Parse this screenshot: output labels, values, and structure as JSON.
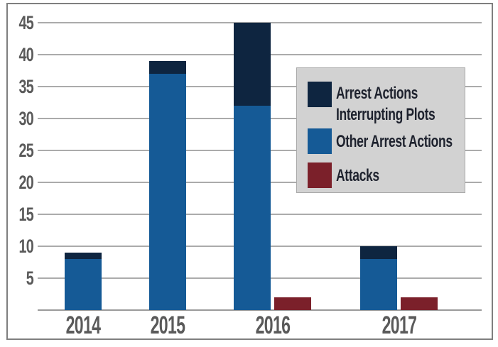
{
  "chart_data": {
    "type": "bar",
    "subtype": "stacked-column-with-side-column",
    "title": "",
    "xlabel": "",
    "ylabel": "",
    "categories": [
      "2014",
      "2015",
      "2016",
      "2017"
    ],
    "series": [
      {
        "name": "Arrest Actions Interrupting Plots",
        "color": "#0e2540",
        "stack": "arrest-actions",
        "values": [
          1,
          2,
          13,
          2
        ]
      },
      {
        "name": "Other Arrest Actions",
        "color": "#155a96",
        "stack": "arrest-actions",
        "values": [
          8,
          37,
          32,
          8
        ]
      },
      {
        "name": "Attacks",
        "color": "#7b202a",
        "stack": null,
        "values": [
          0,
          0,
          2,
          2
        ]
      }
    ],
    "stack_totals": [
      9,
      39,
      45,
      10
    ],
    "ylim": [
      0,
      45
    ],
    "yticks": [
      5,
      10,
      15,
      20,
      25,
      30,
      35,
      40,
      45
    ],
    "grid": true,
    "legend_position": "upper-right"
  },
  "legend": {
    "items": [
      {
        "id": "arrest-actions-interrupting-plots",
        "color": "#0e2540",
        "lines": [
          "Arrest Actions",
          "Interrupting Plots"
        ]
      },
      {
        "id": "other-arrest-actions",
        "color": "#155a96",
        "lines": [
          "Other Arrest Actions"
        ]
      },
      {
        "id": "attacks",
        "color": "#7b202a",
        "lines": [
          "Attacks"
        ]
      }
    ]
  },
  "colors": {
    "navy": "#0e2540",
    "blue": "#155a96",
    "dark_red": "#7b202a",
    "gridline": "#ababab",
    "axis_text": "#5a5a5a",
    "legend_bg": "#d2d2d2",
    "legend_border": "#a9a9a9",
    "legend_text": "#1e222e",
    "frame_border": "#7f7f7f"
  }
}
